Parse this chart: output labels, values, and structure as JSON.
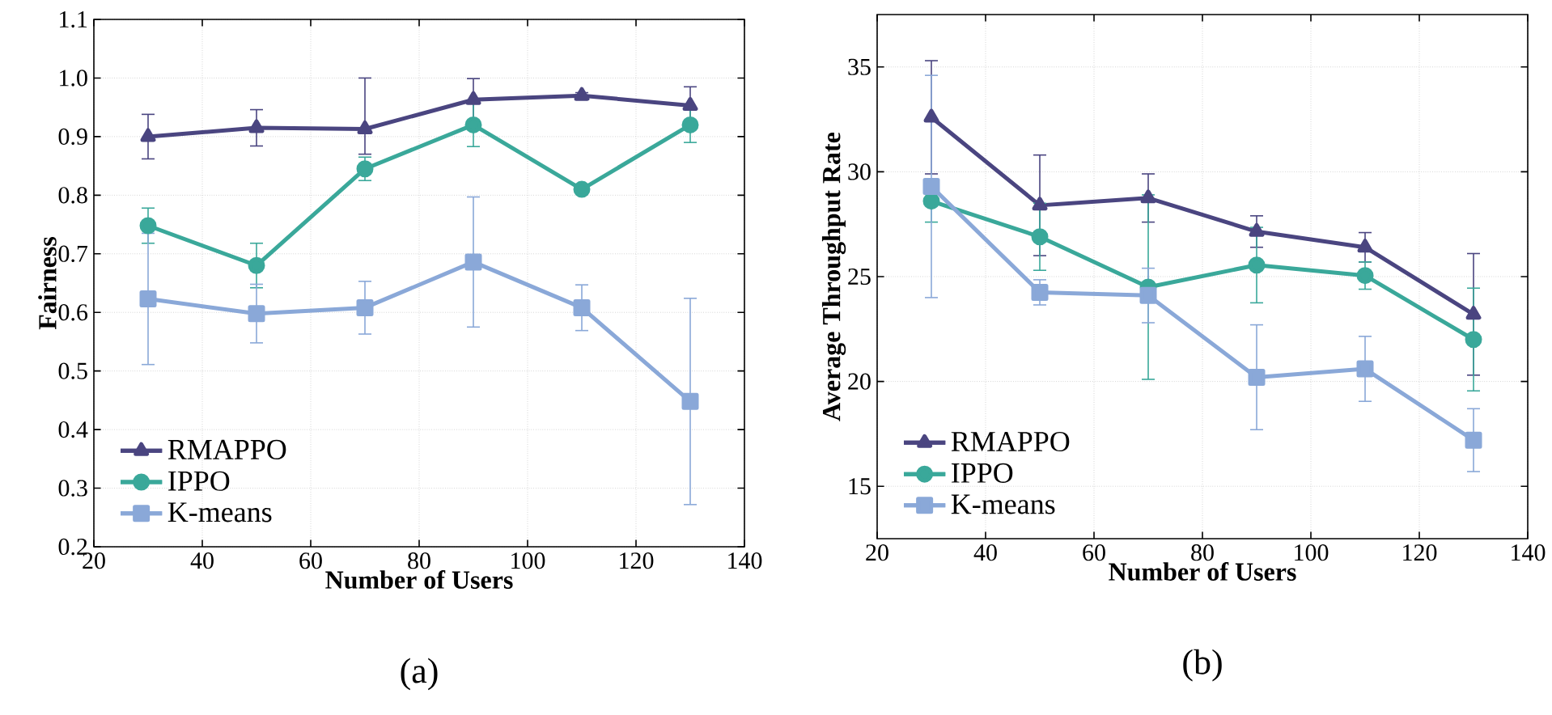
{
  "chart_data": [
    {
      "type": "line",
      "xlabel": "Number of Users",
      "ylabel": "Fairness",
      "x": [
        30,
        50,
        70,
        90,
        110,
        130
      ],
      "xlim": [
        20,
        140
      ],
      "xticks": [
        20,
        40,
        60,
        80,
        100,
        120,
        140
      ],
      "ylim": [
        0.2,
        1.1
      ],
      "yticks": [
        0.2,
        0.3,
        0.4,
        0.5,
        0.6,
        0.7,
        0.8,
        0.9,
        {
          "value": 1.0,
          "label": "1.0"
        },
        1.1
      ],
      "grid": true,
      "legend": "bottom left",
      "annotations": [
        "(a)"
      ],
      "series": [
        {
          "name": "RMAPPO",
          "color": "#4a4580",
          "marker": "triangle",
          "values": [
            0.9,
            0.915,
            0.913,
            0.963,
            0.97,
            0.953
          ],
          "errors": [
            0.038,
            0.031,
            [
              0.87,
              1.0
            ],
            0.036,
            0.005,
            0.032
          ]
        },
        {
          "name": "IPPO",
          "color": "#3aa89a",
          "marker": "circle",
          "values": [
            0.748,
            0.68,
            0.845,
            0.92,
            0.81,
            0.92
          ],
          "errors": [
            0.03,
            0.038,
            0.02,
            0.037,
            0.005,
            0.03
          ]
        },
        {
          "name": "K-means",
          "color": "#8aa8d8",
          "marker": "square",
          "values": [
            0.623,
            0.598,
            0.608,
            0.686,
            0.608,
            0.448
          ],
          "errors": [
            0.112,
            0.05,
            0.045,
            0.111,
            0.039,
            0.176
          ]
        }
      ]
    },
    {
      "type": "line",
      "xlabel": "Number of Users",
      "ylabel": "Average Throughput Rate",
      "x": [
        30,
        50,
        70,
        90,
        110,
        130
      ],
      "xlim": [
        20,
        140
      ],
      "xticks": [
        20,
        40,
        60,
        80,
        100,
        120,
        140
      ],
      "ylim": [
        12.5,
        37.5
      ],
      "yticks": [
        15,
        20,
        25,
        30,
        35
      ],
      "grid": true,
      "legend": "bottom left",
      "annotations": [
        "(b)"
      ],
      "series": [
        {
          "name": "RMAPPO",
          "color": "#4a4580",
          "marker": "triangle",
          "values": [
            32.6,
            28.4,
            28.75,
            27.15,
            26.4,
            23.2
          ],
          "errors": [
            2.7,
            2.4,
            1.15,
            0.75,
            0.7,
            2.9
          ]
        },
        {
          "name": "IPPO",
          "color": "#3aa89a",
          "marker": "circle",
          "values": [
            28.6,
            26.9,
            24.5,
            25.55,
            25.05,
            22.0
          ],
          "errors": [
            1.0,
            1.6,
            4.4,
            1.8,
            0.65,
            2.45
          ]
        },
        {
          "name": "K-means",
          "color": "#8aa8d8",
          "marker": "square",
          "values": [
            29.3,
            24.25,
            24.1,
            20.2,
            20.6,
            17.2
          ],
          "errors": [
            5.3,
            0.6,
            1.3,
            2.5,
            1.55,
            1.5
          ]
        }
      ]
    }
  ]
}
